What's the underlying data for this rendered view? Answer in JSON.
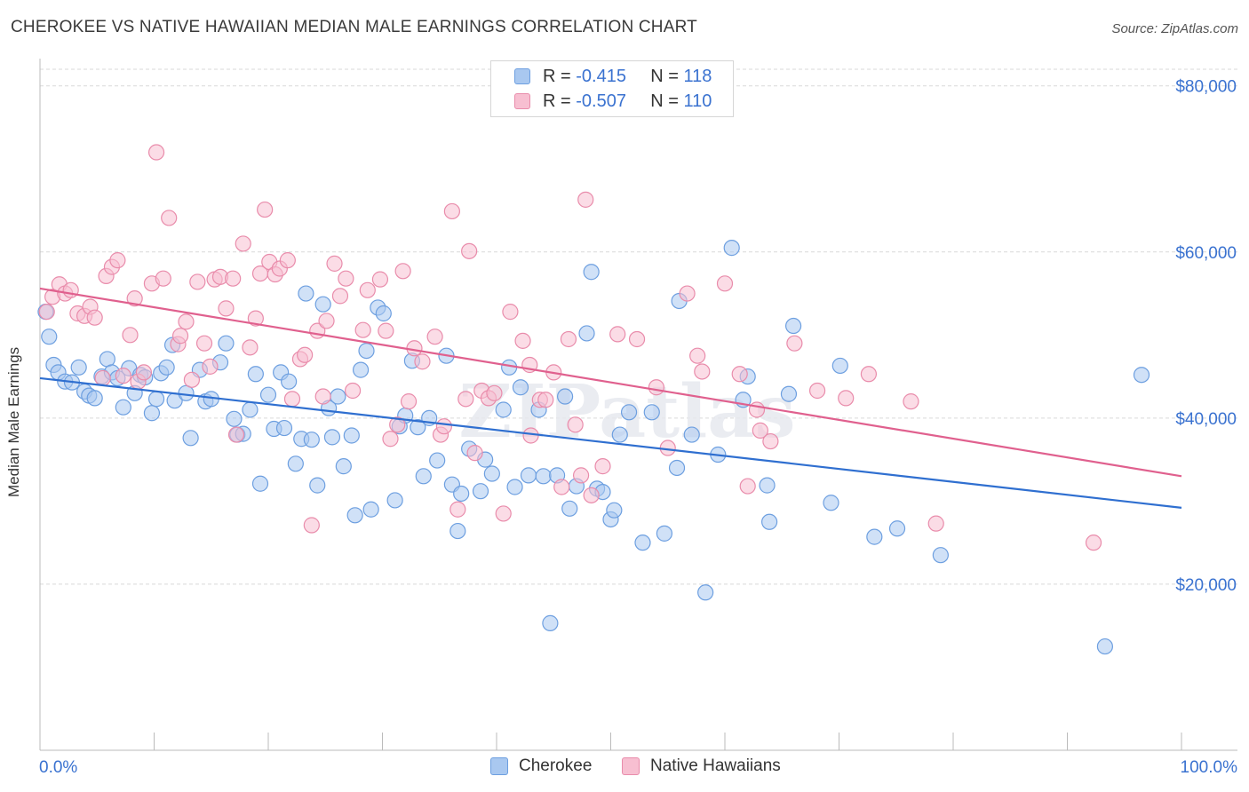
{
  "title": "CHEROKEE VS NATIVE HAWAIIAN MEDIAN MALE EARNINGS CORRELATION CHART",
  "source": "Source: ZipAtlas.com",
  "watermark": "ZIPatlas",
  "legend_top": {
    "rows": [
      {
        "r_label": "R = ",
        "r_value": "-0.415",
        "n_label": "N = ",
        "n_value": "118"
      },
      {
        "r_label": "R = ",
        "r_value": "-0.507",
        "n_label": "N = ",
        "n_value": "110"
      }
    ]
  },
  "legend_bottom": [
    {
      "label": "Cherokee"
    },
    {
      "label": "Native Hawaiians"
    }
  ],
  "colors": {
    "blue_fill": "#a9c8f0",
    "blue_stroke": "#6d9fe0",
    "blue_line": "#2f6fd0",
    "pink_fill": "#f7bfd1",
    "pink_stroke": "#e98cab",
    "pink_line": "#e0608e",
    "tick_label": "#3a72d0",
    "grid": "#d9d9d9"
  },
  "chart_data": {
    "type": "scatter",
    "title": "CHEROKEE VS NATIVE HAWAIIAN MEDIAN MALE EARNINGS CORRELATION CHART",
    "xlabel": "",
    "ylabel": "Median Male Earnings",
    "xlim": [
      0,
      100
    ],
    "ylim": [
      0,
      82000
    ],
    "x_tick_labels": [
      "0.0%",
      "100.0%"
    ],
    "y_ticks": [
      20000,
      40000,
      60000,
      80000
    ],
    "y_tick_labels": [
      "$20,000",
      "$40,000",
      "$60,000",
      "$80,000"
    ],
    "grid": true,
    "legend_position": "top-center",
    "series": [
      {
        "name": "Cherokee",
        "trend": {
          "x": [
            0,
            100
          ],
          "y": [
            44800,
            29200
          ]
        },
        "points": [
          [
            0.5,
            52800
          ],
          [
            0.8,
            49800
          ],
          [
            1.2,
            46400
          ],
          [
            1.6,
            45500
          ],
          [
            2.2,
            44400
          ],
          [
            2.8,
            44300
          ],
          [
            3.4,
            46100
          ],
          [
            3.9,
            43200
          ],
          [
            4.3,
            42700
          ],
          [
            4.8,
            42400
          ],
          [
            5.4,
            45000
          ],
          [
            5.9,
            47100
          ],
          [
            6.3,
            45500
          ],
          [
            6.8,
            44800
          ],
          [
            7.3,
            41300
          ],
          [
            7.8,
            46000
          ],
          [
            8.3,
            43000
          ],
          [
            8.8,
            45200
          ],
          [
            9.2,
            44900
          ],
          [
            9.8,
            40600
          ],
          [
            10.2,
            42300
          ],
          [
            10.6,
            45400
          ],
          [
            11.1,
            46100
          ],
          [
            11.6,
            48800
          ],
          [
            11.8,
            42100
          ],
          [
            12.8,
            43000
          ],
          [
            13.2,
            37600
          ],
          [
            14.0,
            45800
          ],
          [
            14.5,
            42000
          ],
          [
            15.0,
            42300
          ],
          [
            15.8,
            46700
          ],
          [
            16.3,
            49000
          ],
          [
            17.0,
            39900
          ],
          [
            17.3,
            38000
          ],
          [
            17.8,
            38100
          ],
          [
            18.4,
            41000
          ],
          [
            18.9,
            45300
          ],
          [
            19.3,
            32100
          ],
          [
            20.0,
            42800
          ],
          [
            20.5,
            38700
          ],
          [
            21.1,
            45500
          ],
          [
            21.4,
            38800
          ],
          [
            21.8,
            44400
          ],
          [
            22.4,
            34500
          ],
          [
            22.9,
            37500
          ],
          [
            23.3,
            55000
          ],
          [
            23.8,
            37400
          ],
          [
            24.3,
            31900
          ],
          [
            24.8,
            53700
          ],
          [
            25.3,
            41200
          ],
          [
            25.6,
            37700
          ],
          [
            26.1,
            42600
          ],
          [
            26.6,
            34200
          ],
          [
            27.3,
            37900
          ],
          [
            27.6,
            28300
          ],
          [
            28.1,
            45800
          ],
          [
            28.6,
            48100
          ],
          [
            29.0,
            29000
          ],
          [
            29.6,
            53300
          ],
          [
            30.1,
            52600
          ],
          [
            31.1,
            30100
          ],
          [
            31.5,
            39000
          ],
          [
            32.0,
            40300
          ],
          [
            32.6,
            46900
          ],
          [
            33.1,
            38900
          ],
          [
            33.6,
            33000
          ],
          [
            34.1,
            40000
          ],
          [
            34.8,
            34900
          ],
          [
            35.6,
            47500
          ],
          [
            36.1,
            32000
          ],
          [
            36.6,
            26400
          ],
          [
            36.9,
            30900
          ],
          [
            37.6,
            36300
          ],
          [
            38.6,
            31200
          ],
          [
            39.0,
            35000
          ],
          [
            39.6,
            33300
          ],
          [
            40.6,
            41000
          ],
          [
            41.1,
            46100
          ],
          [
            41.6,
            31700
          ],
          [
            42.1,
            43700
          ],
          [
            42.8,
            33100
          ],
          [
            43.7,
            41000
          ],
          [
            44.1,
            33000
          ],
          [
            44.7,
            15300
          ],
          [
            45.3,
            33100
          ],
          [
            46.0,
            42600
          ],
          [
            46.4,
            29100
          ],
          [
            47.0,
            31800
          ],
          [
            47.9,
            50200
          ],
          [
            48.3,
            57600
          ],
          [
            48.8,
            31500
          ],
          [
            49.3,
            31100
          ],
          [
            50.0,
            27800
          ],
          [
            50.3,
            28900
          ],
          [
            50.8,
            38000
          ],
          [
            51.6,
            40700
          ],
          [
            52.8,
            25000
          ],
          [
            53.6,
            40700
          ],
          [
            54.7,
            26100
          ],
          [
            55.8,
            34000
          ],
          [
            56.0,
            54100
          ],
          [
            57.1,
            38000
          ],
          [
            58.3,
            19000
          ],
          [
            59.4,
            35600
          ],
          [
            60.6,
            60500
          ],
          [
            61.6,
            42200
          ],
          [
            62.0,
            45000
          ],
          [
            63.7,
            31900
          ],
          [
            63.9,
            27500
          ],
          [
            65.6,
            42900
          ],
          [
            66.0,
            51100
          ],
          [
            69.3,
            29800
          ],
          [
            70.1,
            46300
          ],
          [
            73.1,
            25700
          ],
          [
            75.1,
            26700
          ],
          [
            78.9,
            23500
          ],
          [
            93.3,
            12500
          ],
          [
            96.5,
            45200
          ]
        ]
      },
      {
        "name": "Native Hawaiians",
        "trend": {
          "x": [
            0,
            100
          ],
          "y": [
            55600,
            33000
          ]
        },
        "points": [
          [
            0.6,
            52800
          ],
          [
            1.1,
            54600
          ],
          [
            1.7,
            56100
          ],
          [
            2.2,
            55000
          ],
          [
            2.7,
            55400
          ],
          [
            3.3,
            52600
          ],
          [
            3.9,
            52300
          ],
          [
            4.4,
            53400
          ],
          [
            4.8,
            52100
          ],
          [
            5.5,
            44800
          ],
          [
            5.8,
            57100
          ],
          [
            6.3,
            58200
          ],
          [
            6.8,
            59000
          ],
          [
            7.3,
            45100
          ],
          [
            7.9,
            50000
          ],
          [
            8.3,
            54400
          ],
          [
            8.6,
            44400
          ],
          [
            9.1,
            45500
          ],
          [
            9.8,
            56200
          ],
          [
            10.2,
            72000
          ],
          [
            10.8,
            56800
          ],
          [
            11.3,
            64100
          ],
          [
            12.1,
            48900
          ],
          [
            12.3,
            49900
          ],
          [
            12.8,
            51600
          ],
          [
            13.3,
            44600
          ],
          [
            13.8,
            56400
          ],
          [
            14.4,
            49000
          ],
          [
            14.9,
            46200
          ],
          [
            15.3,
            56700
          ],
          [
            15.8,
            57000
          ],
          [
            16.3,
            53200
          ],
          [
            16.9,
            56800
          ],
          [
            17.2,
            38000
          ],
          [
            17.8,
            61000
          ],
          [
            18.4,
            48500
          ],
          [
            18.9,
            52000
          ],
          [
            19.3,
            57400
          ],
          [
            19.7,
            65100
          ],
          [
            20.1,
            58800
          ],
          [
            20.6,
            57300
          ],
          [
            21.0,
            58000
          ],
          [
            21.7,
            59000
          ],
          [
            22.1,
            42300
          ],
          [
            22.8,
            47100
          ],
          [
            23.2,
            47600
          ],
          [
            23.8,
            27100
          ],
          [
            24.3,
            50500
          ],
          [
            24.8,
            42600
          ],
          [
            25.1,
            51700
          ],
          [
            25.8,
            58600
          ],
          [
            26.3,
            54700
          ],
          [
            26.8,
            56800
          ],
          [
            27.4,
            43300
          ],
          [
            28.3,
            50600
          ],
          [
            28.7,
            55400
          ],
          [
            29.8,
            56700
          ],
          [
            30.3,
            50500
          ],
          [
            30.7,
            37500
          ],
          [
            31.3,
            39200
          ],
          [
            31.8,
            57700
          ],
          [
            32.3,
            42000
          ],
          [
            32.8,
            48400
          ],
          [
            33.5,
            46800
          ],
          [
            34.6,
            49800
          ],
          [
            35.1,
            38000
          ],
          [
            35.4,
            39000
          ],
          [
            36.1,
            64900
          ],
          [
            36.6,
            29000
          ],
          [
            37.3,
            42300
          ],
          [
            37.6,
            60100
          ],
          [
            38.1,
            35800
          ],
          [
            38.7,
            43300
          ],
          [
            39.3,
            42400
          ],
          [
            39.8,
            43000
          ],
          [
            40.6,
            28500
          ],
          [
            41.2,
            52800
          ],
          [
            42.3,
            49300
          ],
          [
            42.9,
            46400
          ],
          [
            43.0,
            37900
          ],
          [
            43.8,
            42200
          ],
          [
            44.3,
            42200
          ],
          [
            45.0,
            45500
          ],
          [
            45.7,
            31700
          ],
          [
            46.3,
            49500
          ],
          [
            46.9,
            39200
          ],
          [
            47.4,
            33100
          ],
          [
            47.8,
            66300
          ],
          [
            48.3,
            30700
          ],
          [
            49.3,
            34200
          ],
          [
            50.6,
            50100
          ],
          [
            52.3,
            49500
          ],
          [
            54.0,
            43700
          ],
          [
            55.0,
            36400
          ],
          [
            56.7,
            55000
          ],
          [
            57.6,
            47500
          ],
          [
            58.0,
            45600
          ],
          [
            60.0,
            56200
          ],
          [
            61.3,
            45300
          ],
          [
            62.0,
            31800
          ],
          [
            62.8,
            41000
          ],
          [
            63.1,
            38500
          ],
          [
            64.0,
            37200
          ],
          [
            66.1,
            49000
          ],
          [
            68.1,
            43300
          ],
          [
            70.6,
            42400
          ],
          [
            72.6,
            45300
          ],
          [
            76.3,
            42000
          ],
          [
            78.5,
            27300
          ],
          [
            92.3,
            25000
          ]
        ]
      }
    ]
  }
}
